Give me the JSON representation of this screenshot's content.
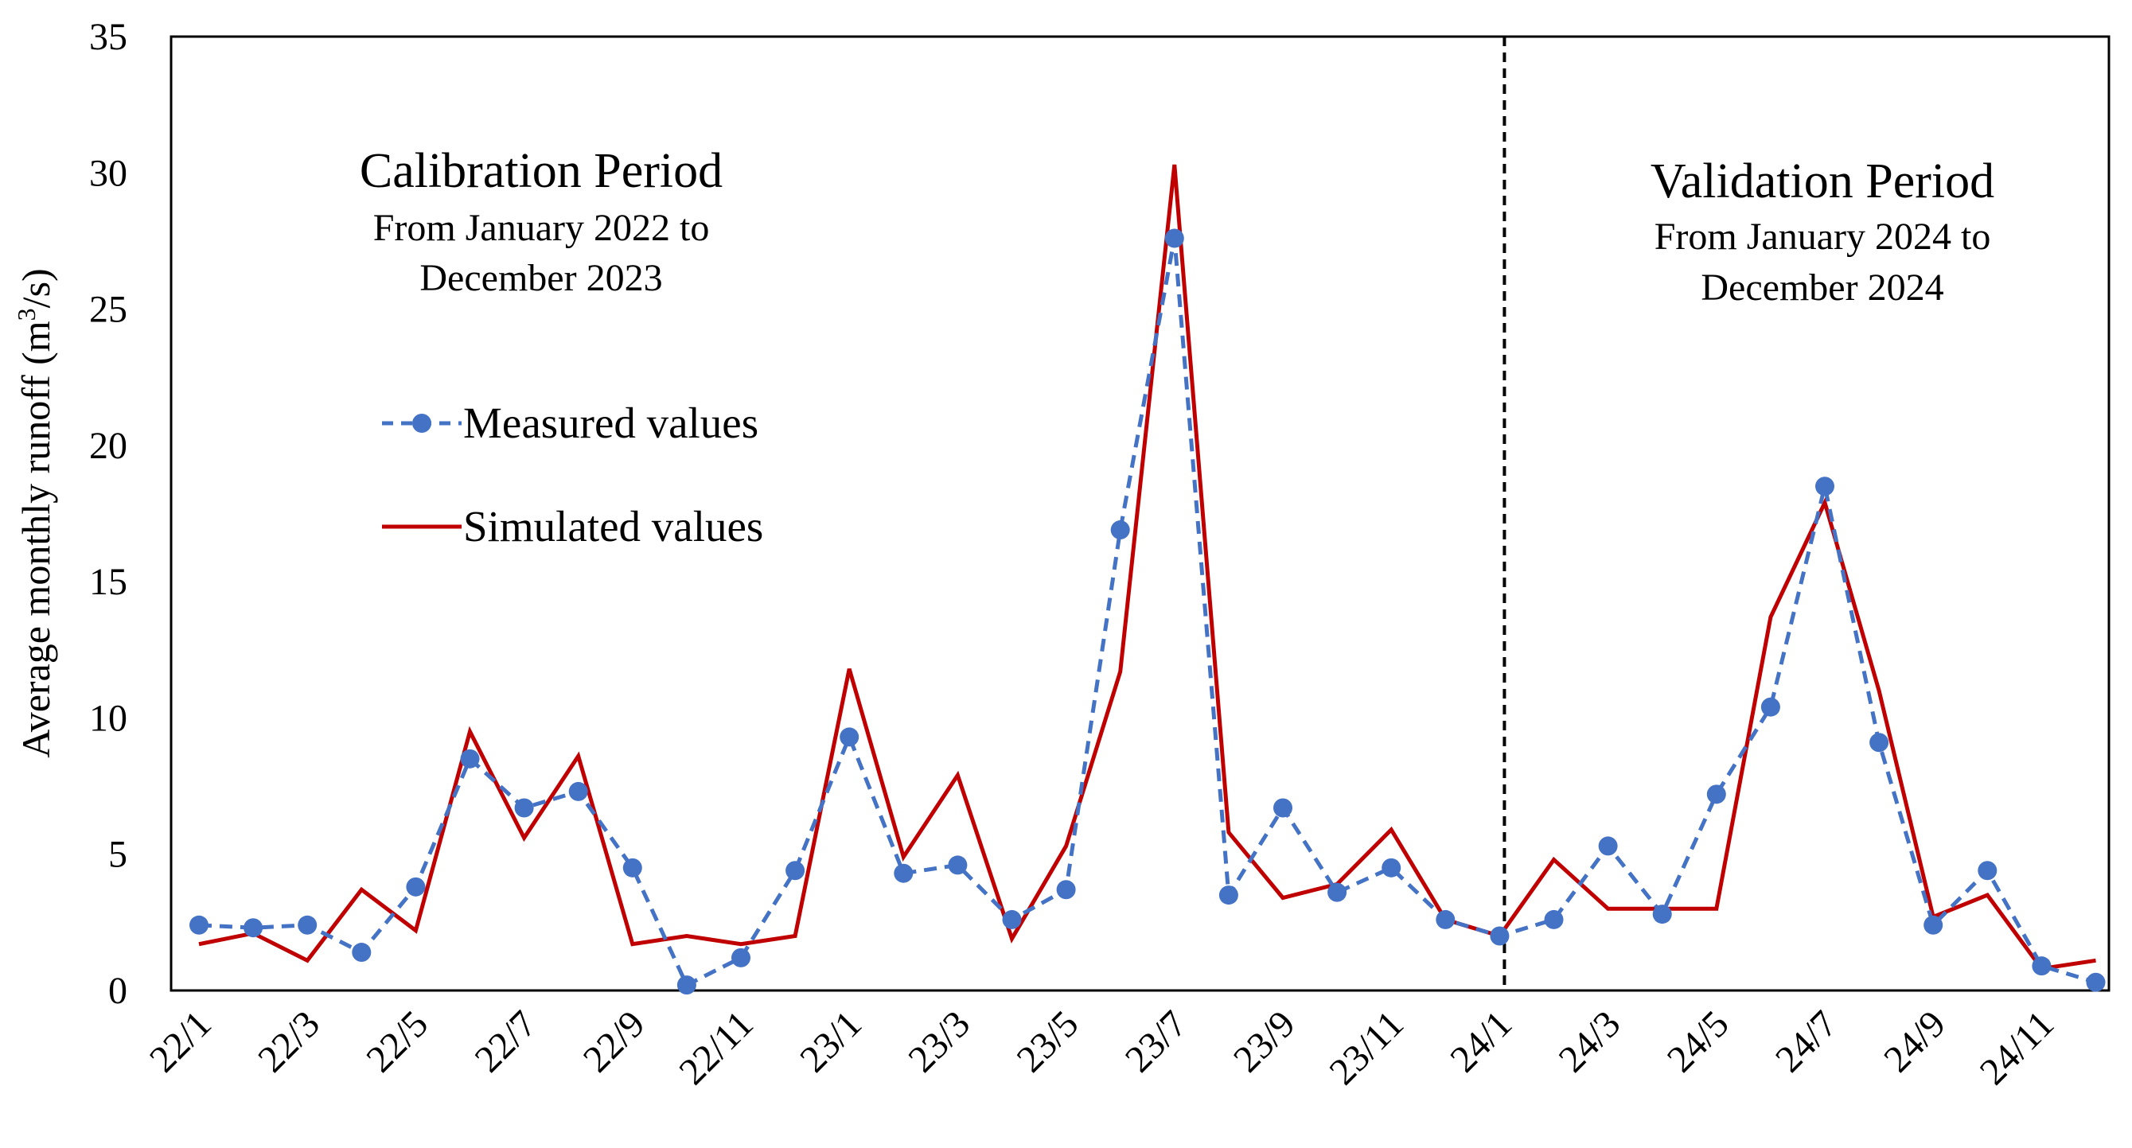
{
  "chart_data": {
    "type": "line",
    "title": "",
    "xlabel": "",
    "ylabel": "Average monthly runoff (m",
    "ylabel_sup": "3",
    "ylabel_end": "/s)",
    "ylim": [
      0,
      35
    ],
    "yticks": [
      0,
      5,
      10,
      15,
      20,
      25,
      30,
      35
    ],
    "x": [
      "22/1",
      "22/2",
      "22/3",
      "22/4",
      "22/5",
      "22/6",
      "22/7",
      "22/8",
      "22/9",
      "22/10",
      "22/11",
      "22/12",
      "23/1",
      "23/2",
      "23/3",
      "23/4",
      "23/5",
      "23/6",
      "23/7",
      "23/8",
      "23/9",
      "23/10",
      "23/11",
      "23/12",
      "24/1",
      "24/2",
      "24/3",
      "24/4",
      "24/5",
      "24/6",
      "24/7",
      "24/8",
      "24/9",
      "24/10",
      "24/11",
      "24/12"
    ],
    "xtick_labels": [
      "22/1",
      "22/3",
      "22/5",
      "22/7",
      "22/9",
      "22/11",
      "23/1",
      "23/3",
      "23/5",
      "23/7",
      "23/9",
      "23/11",
      "24/1",
      "24/3",
      "24/5",
      "24/7",
      "24/9",
      "24/11"
    ],
    "series": [
      {
        "name": "Measured values",
        "color": "#4472C4",
        "style": "dashed-markers",
        "values": [
          2.4,
          2.3,
          2.4,
          1.4,
          3.8,
          8.5,
          6.7,
          7.3,
          4.5,
          0.2,
          1.2,
          4.4,
          9.3,
          4.3,
          4.6,
          2.6,
          3.7,
          16.9,
          27.6,
          3.5,
          6.7,
          3.6,
          4.5,
          2.6,
          2.0,
          2.6,
          5.3,
          2.8,
          7.2,
          10.4,
          18.5,
          9.1,
          2.4,
          4.4,
          0.9,
          0.3
        ]
      },
      {
        "name": "Simulated values",
        "color": "#C00000",
        "style": "solid",
        "values": [
          1.7,
          2.1,
          1.1,
          3.7,
          2.2,
          9.5,
          5.6,
          8.6,
          1.7,
          2.0,
          1.7,
          2.0,
          11.8,
          4.9,
          7.9,
          1.9,
          5.3,
          11.7,
          30.3,
          5.8,
          3.4,
          3.9,
          5.9,
          2.6,
          2.0,
          4.8,
          3.0,
          3.0,
          3.0,
          13.7,
          17.9,
          11.0,
          2.7,
          3.5,
          0.8,
          1.1
        ]
      }
    ],
    "divider_after": "24/1",
    "annotations": {
      "calibration": {
        "title": "Calibration Period",
        "line1": "From January 2022 to",
        "line2": "December 2023"
      },
      "validation": {
        "title": "Validation Period",
        "line1": "From January 2024 to",
        "line2": "December 2024"
      }
    }
  }
}
